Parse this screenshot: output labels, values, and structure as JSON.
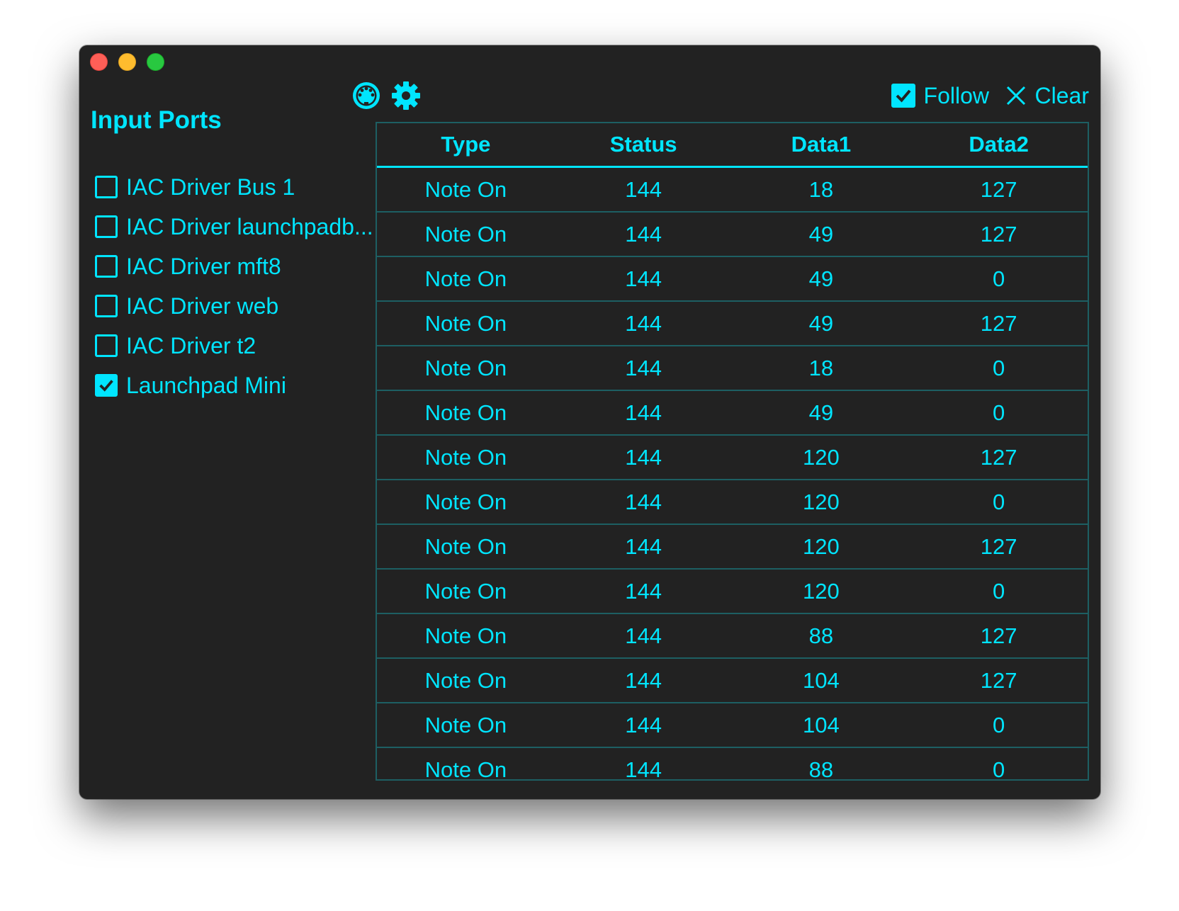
{
  "sidebar": {
    "title": "Input Ports",
    "ports": [
      {
        "label": "IAC Driver Bus 1",
        "checked": false
      },
      {
        "label": "IAC Driver launchpadb...",
        "checked": false
      },
      {
        "label": "IAC Driver mft8",
        "checked": false
      },
      {
        "label": "IAC Driver web",
        "checked": false
      },
      {
        "label": "IAC Driver t2",
        "checked": false
      },
      {
        "label": "Launchpad Mini",
        "checked": true
      }
    ]
  },
  "toolbar": {
    "midi_icon": "midi-connector-icon",
    "settings_icon": "gear-icon",
    "follow_label": "Follow",
    "follow_checked": true,
    "clear_icon": "close-icon",
    "clear_label": "Clear"
  },
  "table": {
    "columns": [
      "Type",
      "Status",
      "Data1",
      "Data2"
    ],
    "rows": [
      [
        "Note On",
        "144",
        "18",
        "127"
      ],
      [
        "Note On",
        "144",
        "49",
        "127"
      ],
      [
        "Note On",
        "144",
        "49",
        "0"
      ],
      [
        "Note On",
        "144",
        "49",
        "127"
      ],
      [
        "Note On",
        "144",
        "18",
        "0"
      ],
      [
        "Note On",
        "144",
        "49",
        "0"
      ],
      [
        "Note On",
        "144",
        "120",
        "127"
      ],
      [
        "Note On",
        "144",
        "120",
        "0"
      ],
      [
        "Note On",
        "144",
        "120",
        "127"
      ],
      [
        "Note On",
        "144",
        "120",
        "0"
      ],
      [
        "Note On",
        "144",
        "88",
        "127"
      ],
      [
        "Note On",
        "144",
        "104",
        "127"
      ],
      [
        "Note On",
        "144",
        "104",
        "0"
      ],
      [
        "Note On",
        "144",
        "88",
        "0"
      ]
    ]
  },
  "colors": {
    "accent": "#00e5ff",
    "background": "#222222",
    "grid": "#1d5f63"
  }
}
